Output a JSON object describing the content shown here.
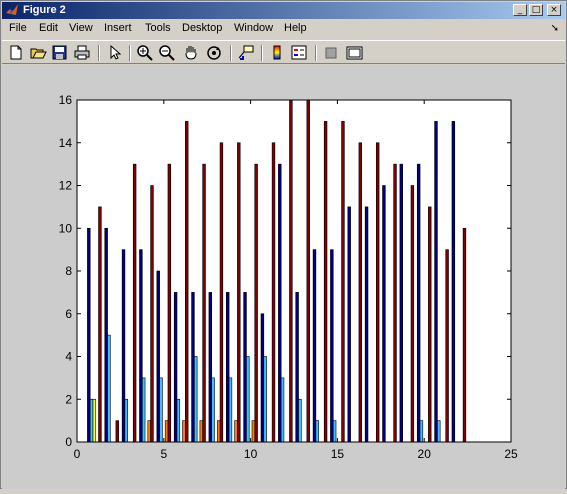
{
  "window": {
    "title": "Figure 2",
    "controls": {
      "minimize": "_",
      "maximize": "□",
      "close": "×"
    }
  },
  "menu": {
    "items": [
      "File",
      "Edit",
      "View",
      "Insert",
      "Tools",
      "Desktop",
      "Window",
      "Help"
    ]
  },
  "toolbar": {
    "tools": [
      {
        "icon": "new-figure-icon"
      },
      {
        "icon": "open-file-icon"
      },
      {
        "icon": "save-icon"
      },
      {
        "icon": "print-icon"
      },
      {
        "icon": "edit-plot-arrow-icon"
      },
      {
        "icon": "zoom-in-icon"
      },
      {
        "icon": "zoom-out-icon"
      },
      {
        "icon": "pan-hand-icon"
      },
      {
        "icon": "rotate-3d-icon"
      },
      {
        "icon": "data-cursor-icon"
      },
      {
        "icon": "insert-colorbar-icon"
      },
      {
        "icon": "insert-legend-icon"
      },
      {
        "icon": "hide-plot-tools-icon"
      },
      {
        "icon": "show-plot-tools-icon"
      }
    ]
  },
  "chart_data": {
    "type": "bar",
    "x": [
      1,
      2,
      3,
      4,
      5,
      6,
      7,
      8,
      9,
      10,
      11,
      12,
      13,
      14,
      15,
      16,
      17,
      18,
      19,
      20,
      21,
      22
    ],
    "series": [
      {
        "color": "#00007f",
        "values": [
          10,
          10,
          9,
          9,
          8,
          7,
          7,
          7,
          7,
          7,
          6,
          13,
          7,
          9,
          9,
          11,
          11,
          12,
          13,
          13,
          15,
          15
        ]
      },
      {
        "color": "#3fbfff",
        "values": [
          2,
          5,
          2,
          3,
          3,
          2,
          4,
          3,
          3,
          4,
          4,
          3,
          2,
          1,
          1,
          0,
          0,
          0,
          0,
          1,
          1,
          0
        ]
      },
      {
        "color": "#ffff00",
        "values": [
          2,
          0,
          0,
          0,
          0,
          0,
          0,
          0,
          0,
          0,
          0,
          0,
          0,
          0,
          0,
          0,
          0,
          0,
          0,
          0,
          0,
          0
        ]
      },
      {
        "color": "#ff7f00",
        "values": [
          0,
          0,
          0,
          1,
          1,
          1,
          1,
          1,
          1,
          1,
          0,
          0,
          0,
          0,
          0,
          0,
          0,
          0,
          0,
          0,
          0,
          0
        ]
      },
      {
        "color": "#7f0000",
        "values": [
          11,
          1,
          13,
          12,
          13,
          15,
          13,
          14,
          14,
          13,
          14,
          16,
          16,
          15,
          15,
          14,
          14,
          13,
          12,
          11,
          9,
          10
        ]
      }
    ],
    "xlim": [
      0,
      25
    ],
    "ylim": [
      0,
      16
    ],
    "xticks": [
      0,
      5,
      10,
      15,
      20,
      25
    ],
    "yticks": [
      0,
      2,
      4,
      6,
      8,
      10,
      12,
      14,
      16
    ],
    "grid": false
  }
}
